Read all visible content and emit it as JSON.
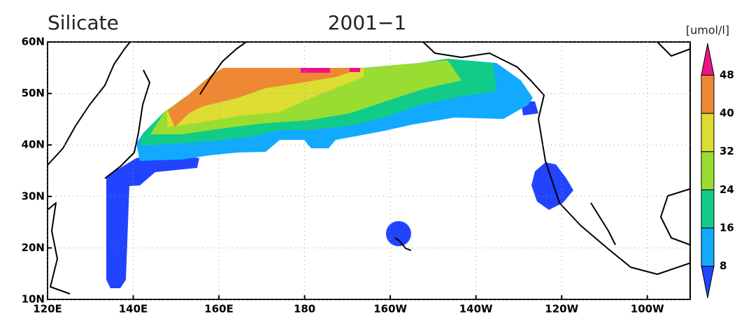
{
  "map": {
    "title": "Silicate",
    "subtitle": "2001−1",
    "unit": "[umol/l]",
    "lonlim": [
      120,
      270
    ],
    "latlim": [
      10,
      60
    ],
    "lonticks": [
      {
        "value": 120,
        "label": "120E"
      },
      {
        "value": 140,
        "label": "140E"
      },
      {
        "value": 160,
        "label": "160E"
      },
      {
        "value": 180,
        "label": "180"
      },
      {
        "value": 200,
        "label": "160W"
      },
      {
        "value": 220,
        "label": "140W"
      },
      {
        "value": 240,
        "label": "120W"
      },
      {
        "value": 260,
        "label": "100W"
      }
    ],
    "latticks": [
      {
        "value": 10,
        "label": "10N"
      },
      {
        "value": 20,
        "label": "20N"
      },
      {
        "value": 30,
        "label": "30N"
      },
      {
        "value": 40,
        "label": "40N"
      },
      {
        "value": 50,
        "label": "50N"
      },
      {
        "value": 60,
        "label": "60N"
      }
    ],
    "grid": true,
    "colorbar": {
      "levels": [
        8,
        16,
        24,
        32,
        40,
        48
      ],
      "colors": [
        "#2244ff",
        "#11aaff",
        "#11cc88",
        "#99dd33",
        "#dddd33",
        "#ee8833",
        "#ee1188"
      ]
    }
  }
}
